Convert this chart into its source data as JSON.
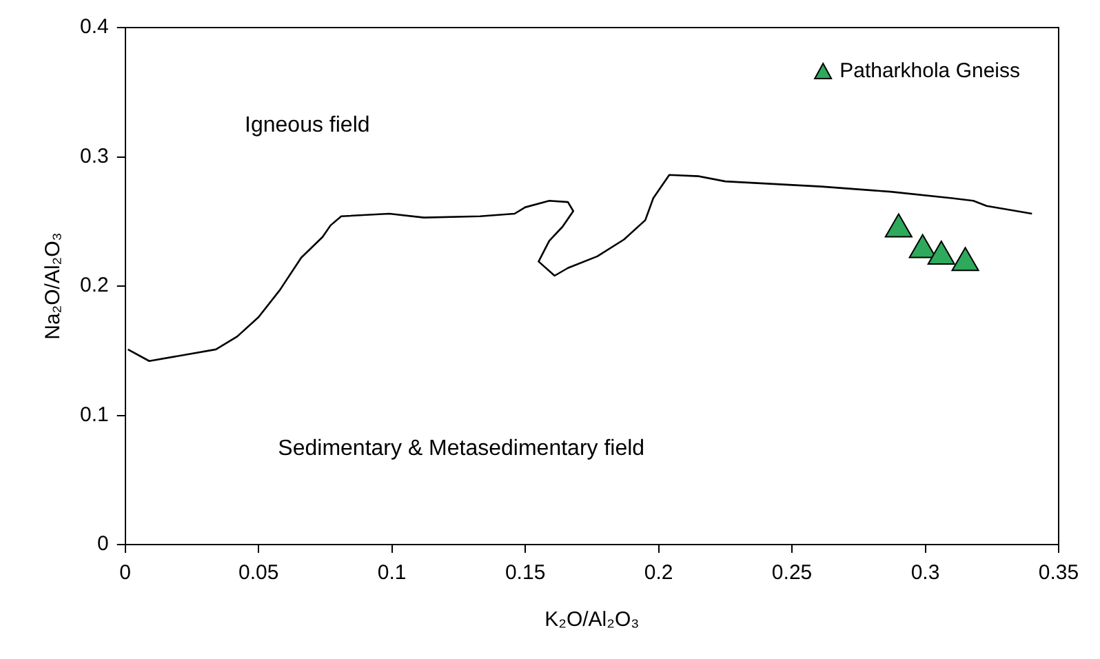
{
  "chart_data": {
    "type": "scatter",
    "xlabel": "K₂O/Al₂O₃",
    "ylabel": "Na₂O/Al₂O₃",
    "xlim": [
      0,
      0.35
    ],
    "xticks": [
      0,
      0.05,
      0.1,
      0.15,
      0.2,
      0.25,
      0.3,
      0.35
    ],
    "ylim": [
      0,
      0.4
    ],
    "yticks": [
      0,
      0.1,
      0.2,
      0.3,
      0.4
    ],
    "legend": "top right",
    "marker": "triangle",
    "series": [
      {
        "type": "line",
        "color": "#000000",
        "marker": "none",
        "line_style": "solid",
        "x": [
          0.001,
          0.009,
          0.034,
          0.042,
          0.05,
          0.058,
          0.066,
          0.074,
          0.077,
          0.081,
          0.099,
          0.112,
          0.133,
          0.146,
          0.15,
          0.159,
          0.166,
          0.168,
          0.164,
          0.159,
          0.155,
          0.161,
          0.166,
          0.177,
          0.187,
          0.195,
          0.198,
          0.204,
          0.215,
          0.225,
          0.261,
          0.287,
          0.31,
          0.318,
          0.323,
          0.34
        ],
        "values": [
          0.151,
          0.142,
          0.151,
          0.161,
          0.176,
          0.197,
          0.222,
          0.238,
          0.247,
          0.254,
          0.256,
          0.253,
          0.254,
          0.256,
          0.261,
          0.266,
          0.265,
          0.258,
          0.246,
          0.235,
          0.219,
          0.208,
          0.214,
          0.223,
          0.236,
          0.251,
          0.268,
          0.286,
          0.285,
          0.281,
          0.277,
          0.273,
          0.268,
          0.266,
          0.262,
          0.256
        ]
      },
      {
        "type": "scatter",
        "name": "Patharkhola Gneiss",
        "color": "#2eaa5c",
        "x": [
          0.29,
          0.299,
          0.306,
          0.315
        ],
        "values": [
          0.244,
          0.228,
          0.223,
          0.218
        ]
      }
    ],
    "annotations": [
      "Igneous field",
      "Sedimentary & Metasedimentary field"
    ]
  }
}
